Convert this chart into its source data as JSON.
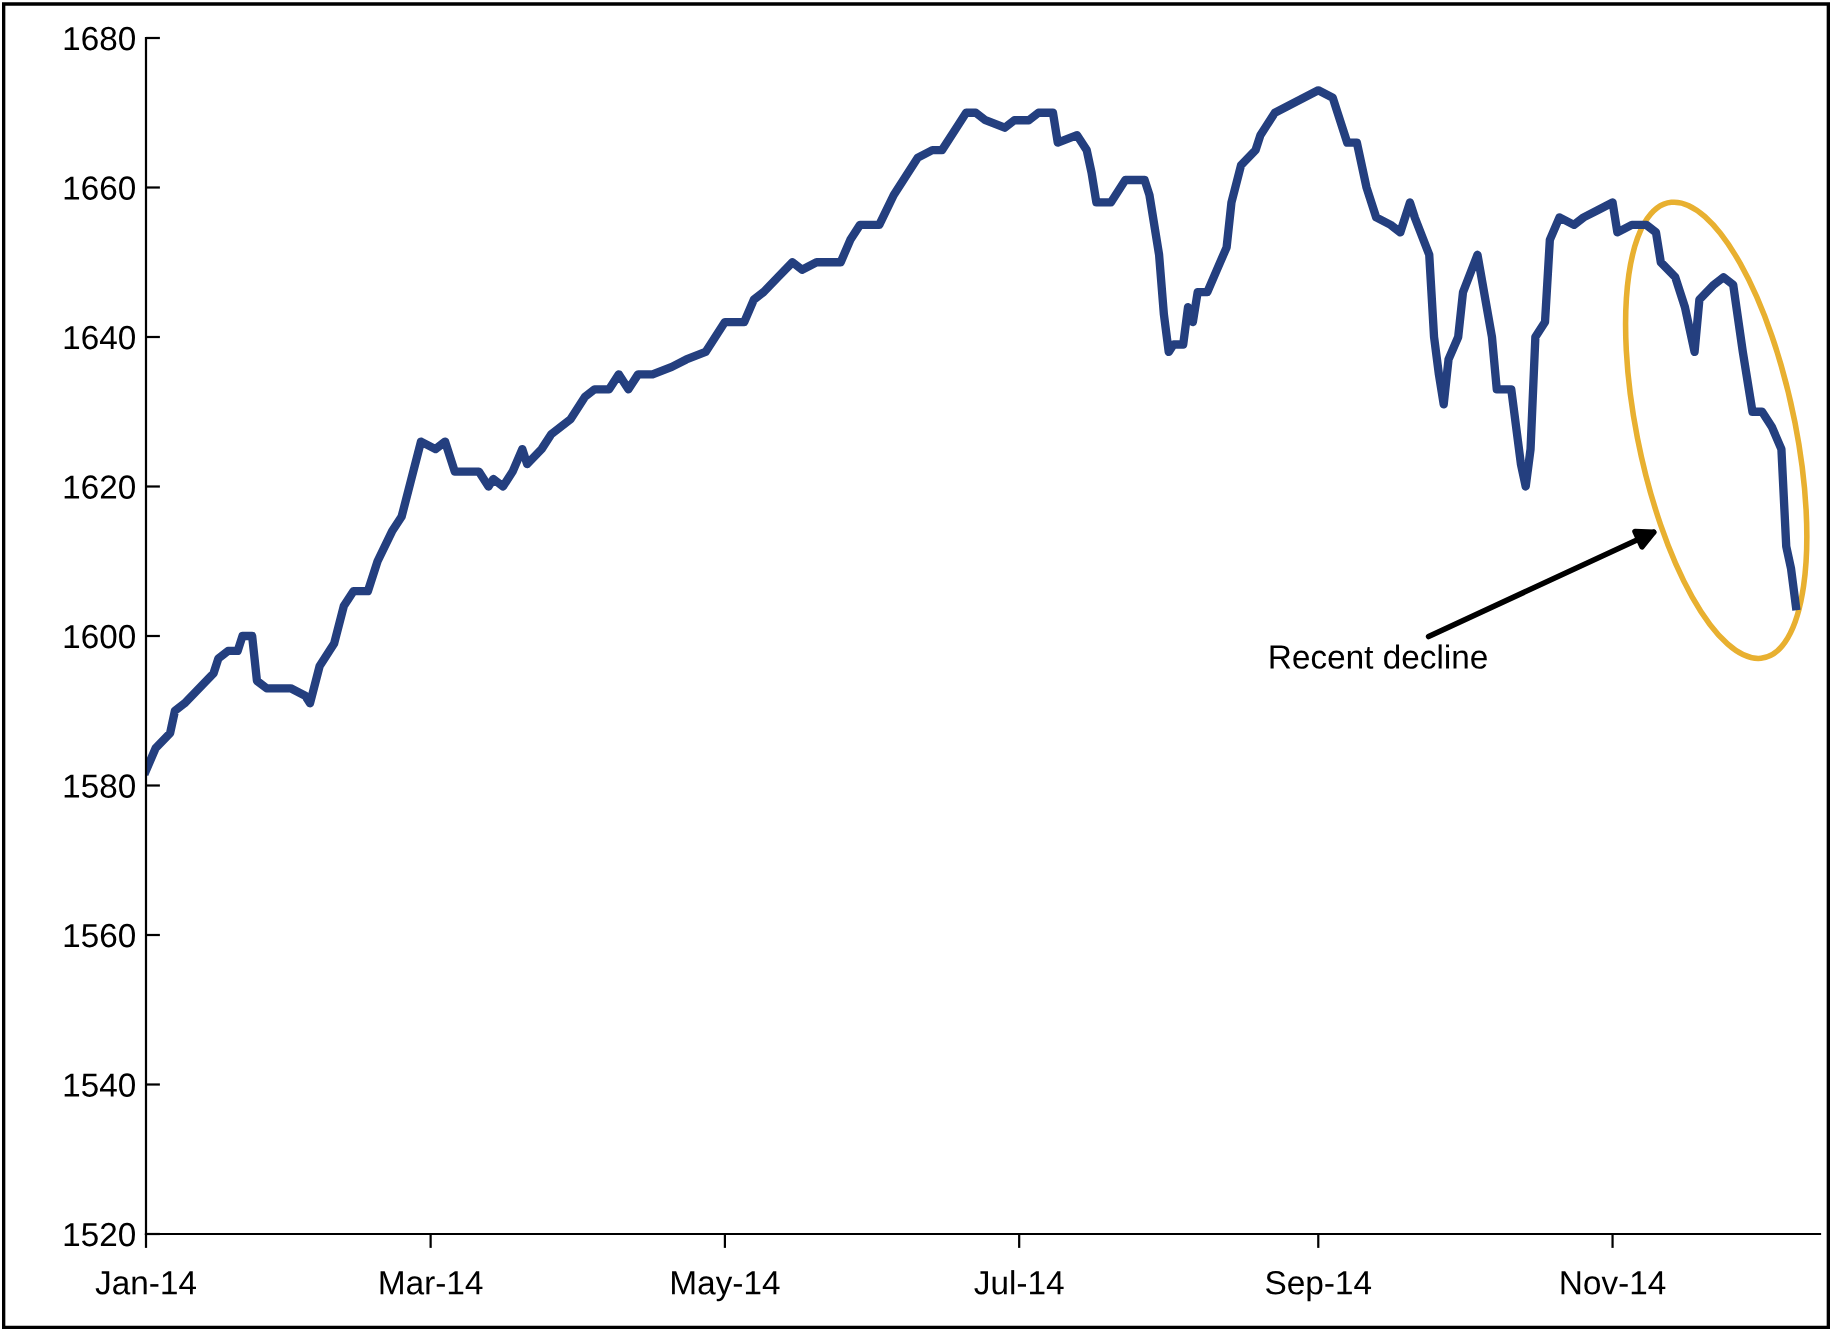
{
  "chart_data": {
    "type": "line",
    "x": [
      "2014-01-01",
      "2014-01-03",
      "2014-01-06",
      "2014-01-07",
      "2014-01-09",
      "2014-01-12",
      "2014-01-15",
      "2014-01-16",
      "2014-01-18",
      "2014-01-20",
      "2014-01-21",
      "2014-01-23",
      "2014-01-24",
      "2014-01-26",
      "2014-01-29",
      "2014-01-31",
      "2014-02-03",
      "2014-02-04",
      "2014-02-06",
      "2014-02-09",
      "2014-02-11",
      "2014-02-13",
      "2014-02-16",
      "2014-02-18",
      "2014-02-21",
      "2014-02-23",
      "2014-02-25",
      "2014-02-27",
      "2014-03-02",
      "2014-03-04",
      "2014-03-06",
      "2014-03-10",
      "2014-03-11",
      "2014-03-13",
      "2014-03-14",
      "2014-03-16",
      "2014-03-18",
      "2014-03-20",
      "2014-03-21",
      "2014-03-24",
      "2014-03-26",
      "2014-03-28",
      "2014-03-30",
      "2014-04-02",
      "2014-04-04",
      "2014-04-07",
      "2014-04-09",
      "2014-04-11",
      "2014-04-13",
      "2014-04-16",
      "2014-04-20",
      "2014-04-23",
      "2014-04-27",
      "2014-04-29",
      "2014-05-01",
      "2014-05-05",
      "2014-05-07",
      "2014-05-09",
      "2014-05-12",
      "2014-05-15",
      "2014-05-17",
      "2014-05-20",
      "2014-05-22",
      "2014-05-25",
      "2014-05-27",
      "2014-05-29",
      "2014-06-01",
      "2014-06-02",
      "2014-06-05",
      "2014-06-07",
      "2014-06-10",
      "2014-06-13",
      "2014-06-15",
      "2014-06-18",
      "2014-06-20",
      "2014-06-22",
      "2014-06-24",
      "2014-06-28",
      "2014-06-30",
      "2014-07-03",
      "2014-07-05",
      "2014-07-08",
      "2014-07-09",
      "2014-07-13",
      "2014-07-15",
      "2014-07-16",
      "2014-07-17",
      "2014-07-20",
      "2014-07-22",
      "2014-07-23",
      "2014-07-25",
      "2014-07-27",
      "2014-07-28",
      "2014-07-30",
      "2014-07-31",
      "2014-08-01",
      "2014-08-02",
      "2014-08-04",
      "2014-08-05",
      "2014-08-06",
      "2014-08-07",
      "2014-08-09",
      "2014-08-11",
      "2014-08-13",
      "2014-08-14",
      "2014-08-16",
      "2014-08-19",
      "2014-08-20",
      "2014-08-23",
      "2014-08-26",
      "2014-08-29",
      "2014-09-01",
      "2014-09-04",
      "2014-09-05",
      "2014-09-07",
      "2014-09-09",
      "2014-09-11",
      "2014-09-13",
      "2014-09-16",
      "2014-09-18",
      "2014-09-20",
      "2014-09-21",
      "2014-09-24",
      "2014-09-25",
      "2014-09-26",
      "2014-09-27",
      "2014-09-28",
      "2014-09-30",
      "2014-10-01",
      "2014-10-04",
      "2014-10-07",
      "2014-10-08",
      "2014-10-11",
      "2014-10-13",
      "2014-10-14",
      "2014-10-15",
      "2014-10-16",
      "2014-10-18",
      "2014-10-19",
      "2014-10-21",
      "2014-10-24",
      "2014-10-26",
      "2014-10-29",
      "2014-11-01",
      "2014-11-02",
      "2014-11-05",
      "2014-11-08",
      "2014-11-10",
      "2014-11-11",
      "2014-11-14",
      "2014-11-16",
      "2014-11-18",
      "2014-11-19",
      "2014-11-22",
      "2014-11-24",
      "2014-11-26",
      "2014-11-28",
      "2014-11-30",
      "2014-12-02",
      "2014-12-04",
      "2014-12-06",
      "2014-12-07",
      "2014-12-08",
      "2014-12-09"
    ],
    "series": [
      {
        "color": "#243f7f",
        "values": [
          1582,
          1585,
          1587,
          1590,
          1591,
          1593,
          1595,
          1597,
          1598,
          1598,
          1600,
          1600,
          1594,
          1593,
          1593,
          1593,
          1592,
          1591,
          1596,
          1599,
          1604,
          1606,
          1606,
          1610,
          1614,
          1616,
          1621,
          1626,
          1625,
          1626,
          1622,
          1622,
          1622,
          1620,
          1621,
          1620,
          1622,
          1625,
          1623,
          1625,
          1627,
          1628,
          1629,
          1632,
          1633,
          1633,
          1635,
          1633,
          1635,
          1635,
          1636,
          1637,
          1638,
          1640,
          1642,
          1642,
          1645,
          1646,
          1648,
          1650,
          1649,
          1650,
          1650,
          1650,
          1653,
          1655,
          1655,
          1655,
          1659,
          1661,
          1664,
          1665,
          1665,
          1668,
          1670,
          1670,
          1669,
          1668,
          1669,
          1669,
          1670,
          1670,
          1666,
          1667,
          1665,
          1662,
          1658,
          1658,
          1660,
          1661,
          1661,
          1661,
          1659,
          1651,
          1643,
          1638,
          1639,
          1639,
          1644,
          1642,
          1646,
          1646,
          1649,
          1652,
          1658,
          1663,
          1665,
          1667,
          1670,
          1671,
          1672,
          1673,
          1672,
          1670,
          1666,
          1666,
          1660,
          1656,
          1655,
          1654,
          1658,
          1656,
          1651,
          1640,
          1635,
          1631,
          1637,
          1640,
          1646,
          1651,
          1640,
          1633,
          1633,
          1623,
          1620,
          1625,
          1640,
          1642,
          1653,
          1656,
          1655,
          1656,
          1657,
          1658,
          1654,
          1655,
          1655,
          1654,
          1650,
          1648,
          1644,
          1638,
          1645,
          1647,
          1648,
          1647,
          1638,
          1630,
          1630,
          1628,
          1625,
          1612,
          1609,
          1604
        ]
      }
    ],
    "xlim": [
      "2014-01-01",
      "2014-12-14"
    ],
    "xticks": [
      {
        "value": "2014-01-01",
        "label": "Jan-14"
      },
      {
        "value": "2014-03-01",
        "label": "Mar-14"
      },
      {
        "value": "2014-05-01",
        "label": "May-14"
      },
      {
        "value": "2014-07-01",
        "label": "Jul-14"
      },
      {
        "value": "2014-09-01",
        "label": "Sep-14"
      },
      {
        "value": "2014-11-01",
        "label": "Nov-14"
      }
    ],
    "ylim": [
      1520,
      1680
    ],
    "yticks": [
      1520,
      1540,
      1560,
      1580,
      1600,
      1620,
      1640,
      1660,
      1680
    ],
    "grid": false,
    "legend": false,
    "marker": "none",
    "line_style": "solid",
    "annotations": [
      "Recent decline"
    ]
  }
}
